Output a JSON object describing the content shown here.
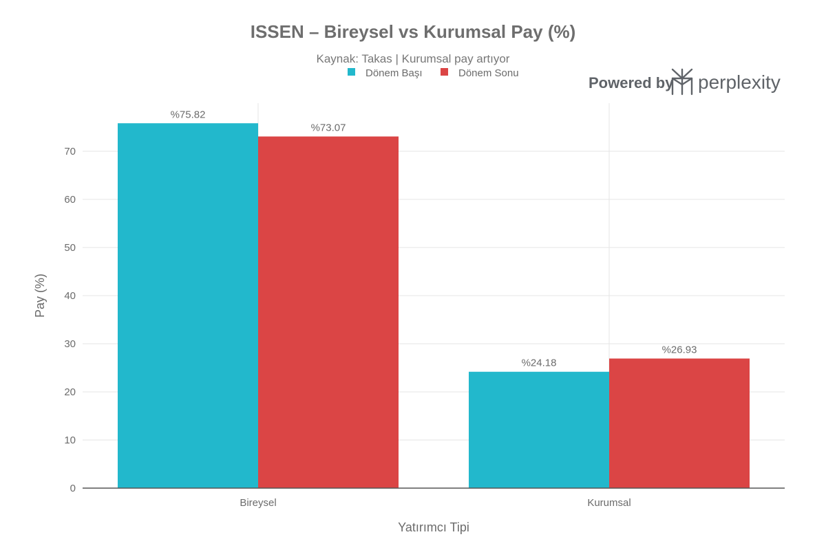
{
  "colors": {
    "donem_basi": "#22b8cc",
    "donem_sonu": "#db4545",
    "grid": "#e4e4e4",
    "axis": "#555555"
  },
  "branding": {
    "powered_by": "Powered by",
    "name": "perplexity",
    "logo_icon": "perplexity-logo-icon"
  },
  "chart_data": {
    "type": "bar",
    "title": "ISSEN – Bireysel vs Kurumsal Pay (%)",
    "subtitle": "Kaynak: Takas | Kurumsal pay artıyor",
    "xlabel": "Yatırımcı Tipi",
    "ylabel": "Pay (%)",
    "ylim": [
      0,
      80
    ],
    "yticks": [
      0,
      10,
      20,
      30,
      40,
      50,
      60,
      70
    ],
    "grid": true,
    "legend_position": "top-center",
    "categories": [
      "Bireysel",
      "Kurumsal"
    ],
    "series": [
      {
        "name": "Dönem Başı",
        "color": "#22b8cc",
        "values": [
          75.82,
          24.18
        ],
        "labels": [
          "%75.82",
          "%24.18"
        ]
      },
      {
        "name": "Dönem Sonu",
        "color": "#db4545",
        "values": [
          73.07,
          26.93
        ],
        "labels": [
          "%73.07",
          "%26.93"
        ]
      }
    ]
  }
}
